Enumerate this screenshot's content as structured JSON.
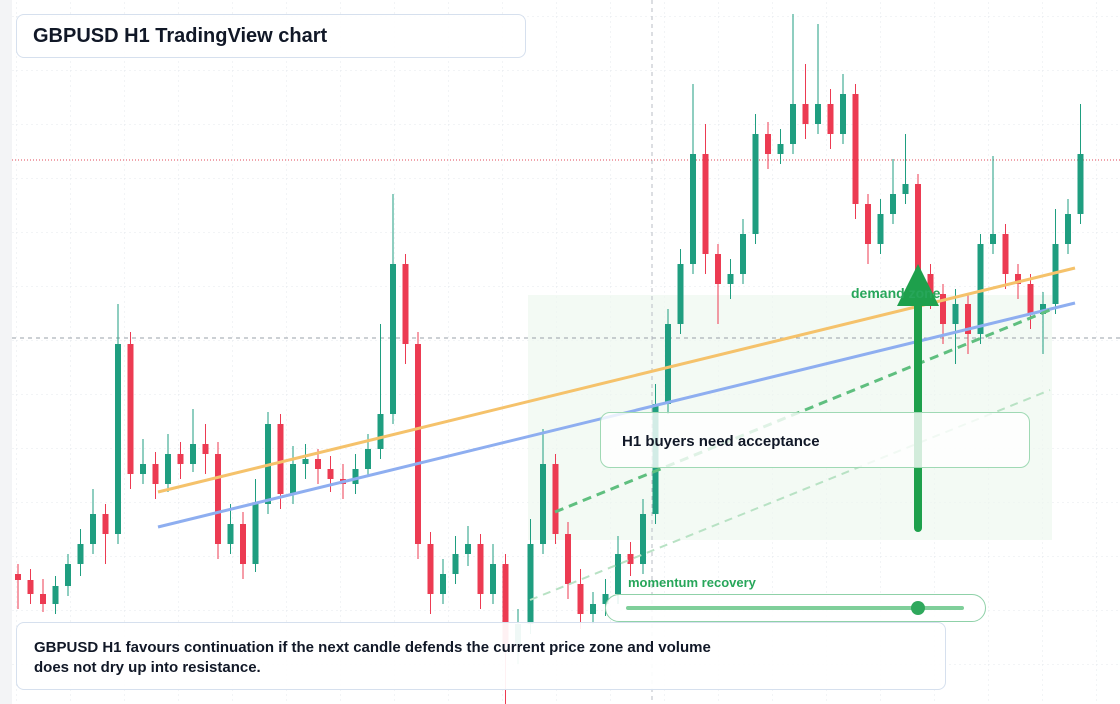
{
  "chart_data": {
    "type": "candlestick",
    "title": "GBPUSD H1 TradingView chart",
    "ylim": [
      0,
      704
    ],
    "up_color": "#1f9e80",
    "down_color": "#ec3b52",
    "open": [
      130,
      124,
      110,
      100,
      118,
      140,
      160,
      190,
      170,
      360,
      230,
      240,
      220,
      250,
      240,
      260,
      250,
      160,
      180,
      140,
      200,
      280,
      210,
      240,
      245,
      235,
      225,
      220,
      235,
      255,
      290,
      440,
      360,
      160,
      110,
      130,
      150,
      160,
      110,
      140,
      60,
      80,
      160,
      240,
      170,
      120,
      90,
      100,
      110,
      150,
      140,
      190,
      300,
      380,
      440,
      550,
      450,
      420,
      430,
      470,
      570,
      550,
      560,
      600,
      580,
      600,
      570,
      610,
      500,
      460,
      490,
      510,
      520,
      430,
      410,
      380,
      400,
      370,
      460,
      470,
      430,
      420,
      390,
      400,
      460,
      490
    ],
    "high": [
      140,
      135,
      125,
      128,
      150,
      175,
      215,
      200,
      400,
      372,
      265,
      252,
      270,
      262,
      295,
      280,
      262,
      200,
      192,
      225,
      292,
      290,
      258,
      260,
      255,
      248,
      240,
      250,
      270,
      380,
      510,
      450,
      372,
      172,
      145,
      168,
      178,
      170,
      160,
      150,
      95,
      185,
      275,
      250,
      182,
      135,
      112,
      125,
      168,
      162,
      205,
      320,
      395,
      455,
      620,
      580,
      460,
      445,
      485,
      590,
      582,
      575,
      690,
      640,
      680,
      615,
      630,
      620,
      510,
      505,
      545,
      570,
      530,
      440,
      420,
      415,
      410,
      470,
      548,
      480,
      440,
      430,
      412,
      495,
      505,
      600
    ],
    "low": [
      95,
      100,
      92,
      90,
      108,
      128,
      150,
      140,
      160,
      215,
      220,
      205,
      212,
      225,
      232,
      230,
      145,
      150,
      125,
      132,
      190,
      195,
      200,
      225,
      220,
      212,
      205,
      210,
      228,
      245,
      280,
      340,
      145,
      90,
      100,
      120,
      138,
      95,
      100,
      0,
      40,
      70,
      150,
      160,
      105,
      75,
      80,
      88,
      100,
      128,
      130,
      180,
      290,
      370,
      430,
      430,
      380,
      405,
      420,
      460,
      535,
      540,
      550,
      565,
      570,
      555,
      560,
      485,
      440,
      450,
      480,
      500,
      415,
      395,
      360,
      340,
      350,
      360,
      450,
      415,
      405,
      375,
      350,
      390,
      450,
      480
    ],
    "close": [
      124,
      110,
      100,
      118,
      140,
      160,
      190,
      170,
      360,
      230,
      240,
      220,
      250,
      240,
      260,
      250,
      160,
      180,
      140,
      200,
      280,
      210,
      240,
      245,
      235,
      225,
      220,
      235,
      255,
      290,
      440,
      360,
      160,
      110,
      130,
      150,
      160,
      110,
      140,
      60,
      80,
      160,
      240,
      170,
      120,
      90,
      100,
      110,
      150,
      140,
      190,
      300,
      380,
      440,
      550,
      450,
      420,
      430,
      470,
      570,
      550,
      560,
      600,
      580,
      600,
      570,
      610,
      500,
      460,
      490,
      510,
      520,
      430,
      410,
      380,
      400,
      370,
      460,
      470,
      430,
      420,
      390,
      400,
      460,
      490,
      550
    ],
    "annotations": {
      "demand": "demand zone",
      "acceptance": "H1 buyers need acceptance",
      "momentum": "momentum recovery"
    },
    "caption": "GBPUSD H1 favours continuation if the next candle defends the current price zone and volume does not dry up into resistance."
  }
}
